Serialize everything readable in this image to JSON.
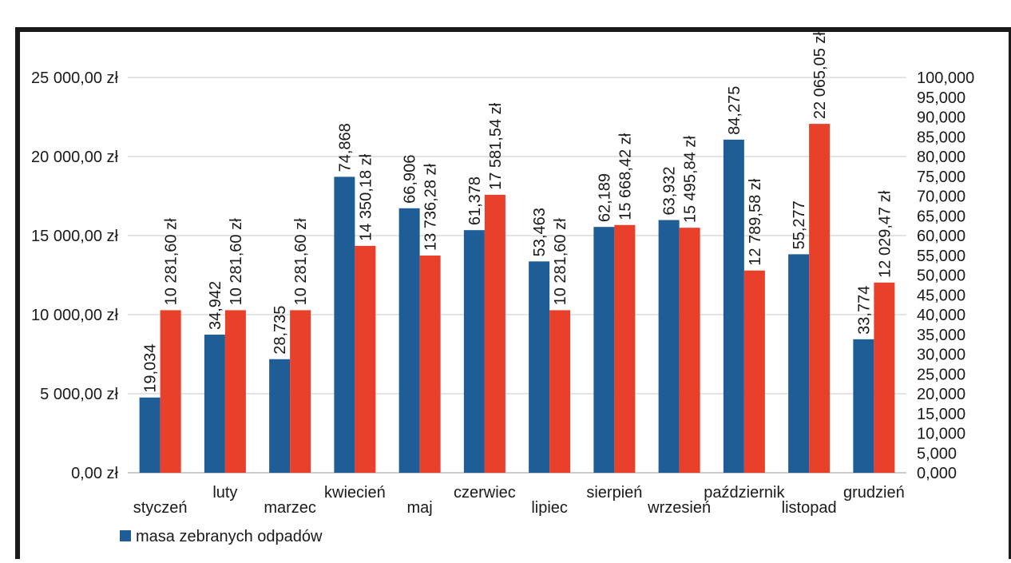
{
  "chart_data": {
    "type": "bar",
    "categories": [
      "styczeń",
      "luty",
      "marzec",
      "kwiecień",
      "maj",
      "czerwiec",
      "lipiec",
      "sierpień",
      "wrzesień",
      "październik",
      "listopad",
      "grudzień"
    ],
    "series": [
      {
        "name": "masa zebranych odpadów",
        "axis": "right",
        "color": "#1f5d96",
        "values": [
          19.034,
          34.942,
          28.735,
          74.868,
          66.906,
          61.378,
          53.463,
          62.189,
          63.932,
          84.275,
          55.277,
          33.774
        ],
        "labels": [
          "19,034",
          "34,942",
          "28,735",
          "74,868",
          "66,906",
          "61,378",
          "53,463",
          "62,189",
          "63,932",
          "84,275",
          "55,277",
          "33,774"
        ]
      },
      {
        "axis": "left",
        "color": "#e8402a",
        "values": [
          10281.6,
          10281.6,
          10281.6,
          14350.18,
          13736.28,
          17581.54,
          10281.6,
          15668.42,
          15495.84,
          12789.58,
          22065.05,
          12029.47
        ],
        "labels": [
          "10 281,60 zł",
          "10 281,60 zł",
          "10 281,60 zł",
          "14 350,18 zł",
          "13 736,28 zł",
          "17 581,54 zł",
          "10 281,60 zł",
          "15 668,42 zł",
          "15 495,84 zł",
          "12 789,58 zł",
          "22 065,05 zł",
          "12 029,47 zł"
        ]
      }
    ],
    "y_left": {
      "range": [
        0,
        25000
      ],
      "ticks": [
        0,
        5000,
        10000,
        15000,
        20000,
        25000
      ],
      "tick_labels": [
        "0,00 zł",
        "5 000,00 zł",
        "10 000,00 zł",
        "15 000,00 zł",
        "20 000,00 zł",
        "25 000,00 zł"
      ]
    },
    "y_right": {
      "range": [
        0,
        100
      ],
      "ticks": [
        0,
        5,
        10,
        15,
        20,
        25,
        30,
        35,
        40,
        45,
        50,
        55,
        60,
        65,
        70,
        75,
        80,
        85,
        90,
        95,
        100
      ],
      "tick_labels": [
        "0,000",
        "5,000",
        "10,000",
        "15,000",
        "20,000",
        "25,000",
        "30,000",
        "35,000",
        "40,000",
        "45,000",
        "50,000",
        "55,000",
        "60,000",
        "65,000",
        "70,000",
        "75,000",
        "80,000",
        "85,000",
        "90,000",
        "95,000",
        "100,000"
      ]
    },
    "grid": true,
    "legend": "bottom-left",
    "title": "",
    "xlabel": "",
    "ylabel": ""
  }
}
